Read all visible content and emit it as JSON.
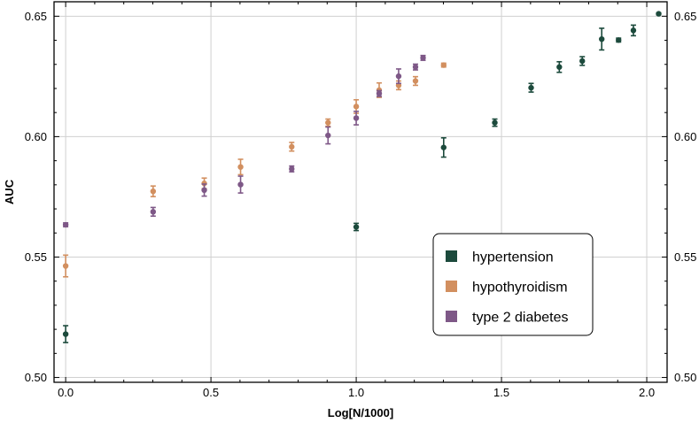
{
  "chart_data": {
    "type": "scatter",
    "title": "",
    "xlabel": "Log[N/1000]",
    "ylabel": "AUC",
    "xlim": [
      -0.04,
      2.07
    ],
    "ylim": [
      0.498,
      0.656
    ],
    "grid": true,
    "legend_position": "lower-right",
    "x_ticks": [
      0.0,
      0.5,
      1.0,
      1.5,
      2.0
    ],
    "x_tick_labels": [
      "0.0",
      "0.5",
      "1.0",
      "1.5",
      "2.0"
    ],
    "y_ticks": [
      0.5,
      0.55,
      0.6,
      0.65
    ],
    "y_tick_labels": [
      "0.50",
      "0.55",
      "0.60",
      "0.65"
    ],
    "series": [
      {
        "name": "hypertension",
        "color": "#1c4a3c",
        "x": [
          0.0,
          1.0,
          1.301,
          1.477,
          1.602,
          1.699,
          1.778,
          1.845,
          1.903,
          1.954,
          2.041
        ],
        "y": [
          0.518,
          0.5625,
          0.5955,
          0.6058,
          0.6203,
          0.6289,
          0.6314,
          0.6405,
          0.6401,
          0.6441,
          0.651
        ],
        "err": [
          0.0035,
          0.0015,
          0.004,
          0.0015,
          0.0018,
          0.0022,
          0.0018,
          0.0045,
          0.0008,
          0.0022,
          0.0004
        ]
      },
      {
        "name": "hypothyroidism",
        "color": "#d28f5f",
        "x": [
          0.0,
          0.301,
          0.477,
          0.602,
          0.778,
          0.903,
          1.0,
          1.079,
          1.146,
          1.204,
          1.301
        ],
        "y": [
          0.5463,
          0.5773,
          0.5806,
          0.5874,
          0.5958,
          0.6058,
          0.6125,
          0.6193,
          0.6213,
          0.6231,
          0.6297
        ],
        "err": [
          0.0045,
          0.0022,
          0.0022,
          0.0032,
          0.0018,
          0.0015,
          0.0028,
          0.003,
          0.0018,
          0.0018,
          0.0008
        ]
      },
      {
        "name": "type 2 diabetes",
        "color": "#7e5887",
        "x": [
          0.0,
          0.301,
          0.477,
          0.602,
          0.778,
          0.903,
          1.0,
          1.079,
          1.146,
          1.204,
          1.23
        ],
        "y": [
          0.5634,
          0.5688,
          0.5778,
          0.5801,
          0.5866,
          0.6005,
          0.6077,
          0.6179,
          0.6251,
          0.6289,
          0.6327
        ],
        "err": [
          0.0008,
          0.0018,
          0.0025,
          0.0035,
          0.0012,
          0.0035,
          0.0028,
          0.0012,
          0.003,
          0.0012,
          0.001
        ]
      }
    ]
  }
}
